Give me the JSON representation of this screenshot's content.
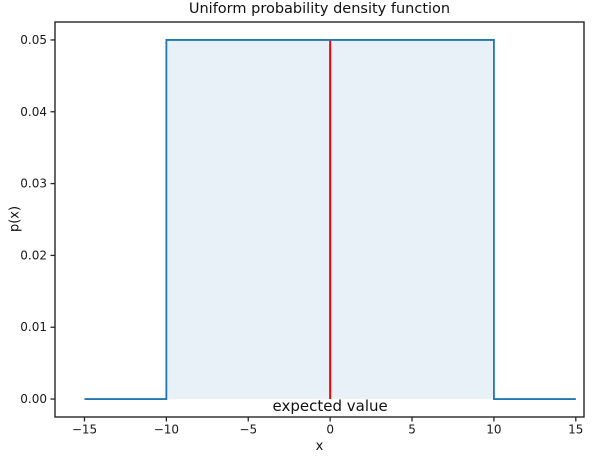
{
  "chart_data": {
    "type": "line",
    "title": "Uniform probability density function",
    "xlabel": "x",
    "ylabel": "p(x)",
    "xlim": [
      -16.8,
      15.5
    ],
    "ylim": [
      -0.0025,
      0.0525
    ],
    "grid": false,
    "legend": null,
    "background_color": "#ffffff",
    "xticks": {
      "values": [
        -15,
        -10,
        -5,
        0,
        5,
        10,
        15
      ],
      "labels": [
        "−15",
        "−10",
        "−5",
        "0",
        "5",
        "10",
        "15"
      ]
    },
    "yticks": {
      "values": [
        0,
        0.01,
        0.02,
        0.03,
        0.04,
        0.05
      ],
      "labels": [
        "0.00",
        "0.01",
        "0.02",
        "0.03",
        "0.04",
        "0.05"
      ]
    },
    "series": [
      {
        "name": "uniform-pdf-step-line",
        "color": "#1f77b4",
        "linewidth": 1.8,
        "points": [
          [
            -15,
            0
          ],
          [
            -10,
            0
          ],
          [
            -10,
            0.05
          ],
          [
            10,
            0.05
          ],
          [
            10,
            0
          ],
          [
            15,
            0
          ]
        ]
      }
    ],
    "fill_between": {
      "x_range": [
        -10,
        10
      ],
      "y_range": [
        0,
        0.05
      ],
      "color": "#1f77b4",
      "opacity": 0.1
    },
    "vline": {
      "x": 0,
      "y_range": [
        0,
        0.05
      ],
      "color": "#ff0000",
      "linewidth": 2
    },
    "annotation": {
      "text": "expected value",
      "x": 0,
      "y": 0
    }
  }
}
